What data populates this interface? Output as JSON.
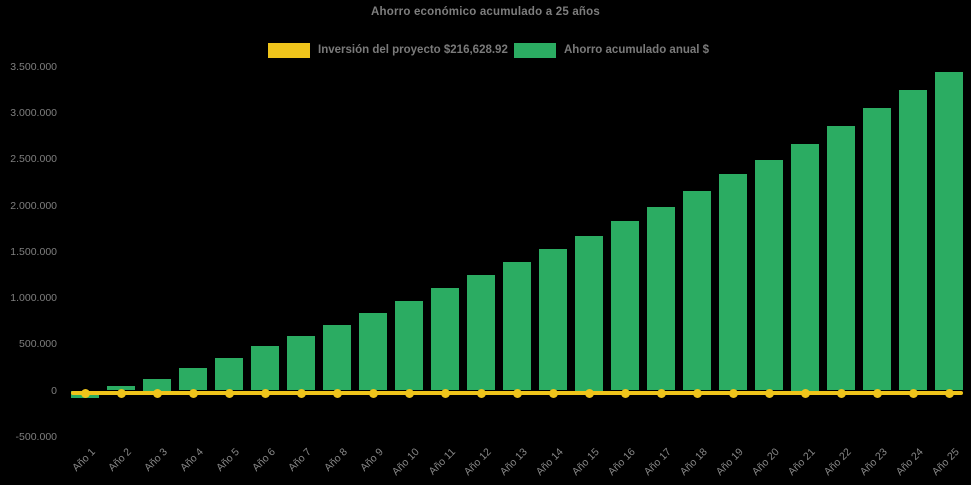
{
  "title": "Ahorro económico acumulado a 25 años",
  "legend": {
    "investment": {
      "label": "Inversión del proyecto $216,628.92",
      "color": "#efc41b"
    },
    "savings": {
      "label": "Ahorro acumulado anual $",
      "color": "#2bac62"
    }
  },
  "chart_data": {
    "type": "bar",
    "title": "Ahorro económico acumulado a 25 años",
    "background_color": "#000000",
    "text_color": "#7e7e7e",
    "grid": false,
    "legend_position": "top-center",
    "xlabel": "",
    "ylabel": "",
    "ylim": [
      -500000,
      3500000
    ],
    "yticks": [
      3500000,
      3000000,
      2500000,
      2000000,
      1500000,
      1000000,
      500000,
      0,
      -500000
    ],
    "ytick_labels": [
      "3.500.000",
      "3.000.000",
      "2.500.000",
      "2.000.000",
      "1.500.000",
      "1.000.000",
      "500.000",
      "0",
      "-500.000"
    ],
    "categories": [
      "Año 1",
      "Año 2",
      "Año 3",
      "Año 4",
      "Año 5",
      "Año 6",
      "Año 7",
      "Año 8",
      "Año 9",
      "Año 10",
      "Año 11",
      "Año 12",
      "Año 13",
      "Año 14",
      "Año 15",
      "Año 16",
      "Año 17",
      "Año 18",
      "Año 19",
      "Año 20",
      "Año 21",
      "Año 22",
      "Año 23",
      "Año 24",
      "Año 25"
    ],
    "series": [
      {
        "name": "Ahorro acumulado anual $",
        "type": "bar",
        "color": "#2bac62",
        "values": [
          -85000,
          45000,
          130000,
          240000,
          355000,
          480000,
          590000,
          710000,
          840000,
          965000,
          1105000,
          1245000,
          1385000,
          1525000,
          1670000,
          1830000,
          1985000,
          2155000,
          2340000,
          2490000,
          2670000,
          2855000,
          3050000,
          3245000,
          3445000
        ]
      },
      {
        "name": "Inversión del proyecto $216,628.92",
        "type": "line",
        "color": "#efc41b",
        "marker": "circle",
        "display_value": "$216,628.92",
        "plotted_value": 0
      }
    ]
  }
}
